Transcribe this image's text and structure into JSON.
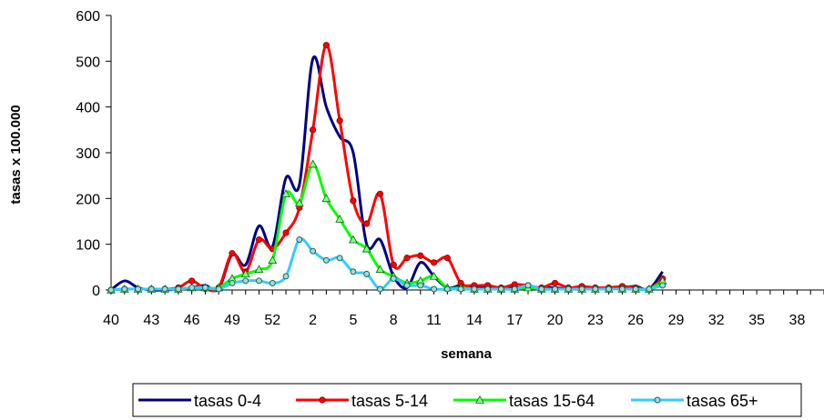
{
  "chart_data": {
    "type": "line",
    "xlabel": "semana",
    "ylabel": "tasas x 100.000",
    "ylim": [
      0,
      600
    ],
    "y_ticks": [
      "0",
      "100",
      "200",
      "300",
      "400",
      "500",
      "600"
    ],
    "x_ticks": [
      "40",
      "43",
      "46",
      "49",
      "52",
      "2",
      "5",
      "8",
      "11",
      "14",
      "17",
      "20",
      "23",
      "26",
      "29",
      "32",
      "35",
      "38"
    ],
    "x": [
      "40",
      "41",
      "42",
      "43",
      "44",
      "45",
      "46",
      "47",
      "48",
      "49",
      "50",
      "51",
      "52",
      "53",
      "1",
      "2",
      "3",
      "4",
      "5",
      "6",
      "7",
      "8",
      "9",
      "10",
      "11",
      "12",
      "13",
      "14",
      "15",
      "16",
      "17",
      "18",
      "19",
      "20",
      "21",
      "22",
      "23",
      "24",
      "25",
      "26",
      "27",
      "28"
    ],
    "grid": false,
    "legend_position": "bottom",
    "series": [
      {
        "name": "tasas 0-4",
        "color": "#000080",
        "marker": "none",
        "values": [
          0,
          20,
          5,
          0,
          0,
          2,
          5,
          10,
          2,
          78,
          55,
          140,
          95,
          245,
          230,
          505,
          400,
          335,
          300,
          100,
          110,
          30,
          5,
          60,
          30,
          5,
          10,
          5,
          5,
          2,
          5,
          5,
          5,
          5,
          2,
          2,
          5,
          2,
          5,
          8,
          2,
          40
        ]
      },
      {
        "name": "tasas 5-14",
        "color": "#ff0000",
        "marker": "circle",
        "values": [
          0,
          2,
          2,
          2,
          2,
          5,
          20,
          3,
          5,
          80,
          40,
          110,
          90,
          125,
          180,
          350,
          535,
          370,
          195,
          145,
          210,
          55,
          70,
          75,
          60,
          70,
          15,
          10,
          10,
          5,
          12,
          10,
          5,
          15,
          5,
          8,
          5,
          5,
          8,
          5,
          2,
          25
        ]
      },
      {
        "name": "tasas 15-64",
        "color": "#00ff00",
        "marker": "triangle",
        "values": [
          0,
          2,
          2,
          2,
          2,
          2,
          5,
          5,
          5,
          25,
          35,
          45,
          65,
          210,
          190,
          275,
          200,
          155,
          110,
          90,
          45,
          30,
          15,
          20,
          30,
          5,
          5,
          2,
          2,
          2,
          2,
          5,
          2,
          2,
          2,
          2,
          2,
          2,
          2,
          2,
          2,
          20
        ]
      },
      {
        "name": "tasas 65+",
        "color": "#33ccff",
        "marker": "circle-teal",
        "values": [
          0,
          2,
          2,
          2,
          2,
          2,
          5,
          5,
          2,
          15,
          20,
          20,
          15,
          30,
          110,
          85,
          65,
          70,
          40,
          35,
          2,
          25,
          10,
          10,
          2,
          2,
          2,
          2,
          2,
          2,
          2,
          10,
          2,
          2,
          2,
          2,
          2,
          2,
          2,
          2,
          2,
          10
        ]
      }
    ]
  }
}
